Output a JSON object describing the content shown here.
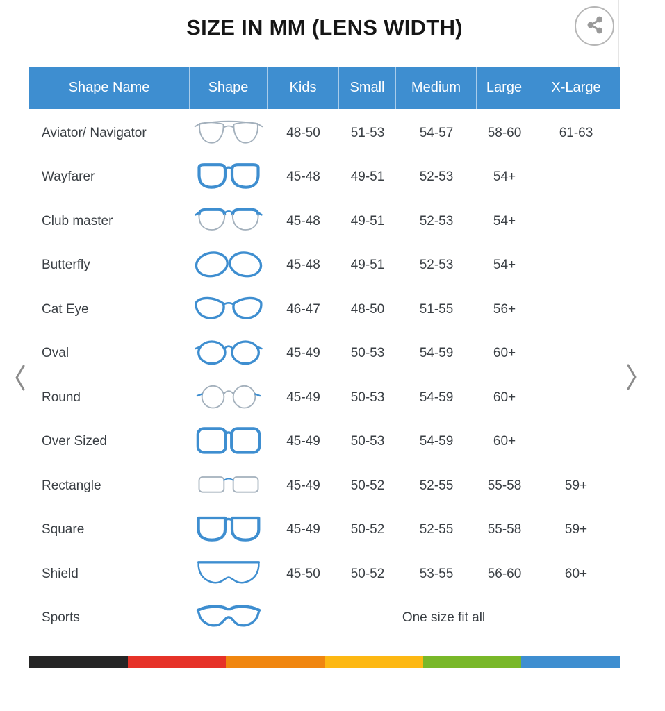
{
  "title": "SIZE IN MM (LENS WIDTH)",
  "share": {
    "icon": "share-icon"
  },
  "carousel": {
    "prev_icon": "chevron-left-icon",
    "next_icon": "chevron-right-icon"
  },
  "colors": {
    "header_bg": "#3e8ed0",
    "icon_blue": "#3e8ed0",
    "icon_gray": "#a3b0bc",
    "stripe": [
      "#262626",
      "#e63228",
      "#f0860f",
      "#fdb813",
      "#79b829",
      "#3e8ed0"
    ]
  },
  "table": {
    "columns": [
      "Shape Name",
      "Shape",
      "Kids",
      "Small",
      "Medium",
      "Large",
      "X-Large"
    ],
    "rows": [
      {
        "name": "Aviator/ Navigator",
        "icon": "aviator-glasses-icon",
        "kids": "48-50",
        "small": "51-53",
        "medium": "54-57",
        "large": "58-60",
        "xlarge": "61-63"
      },
      {
        "name": "Wayfarer",
        "icon": "wayfarer-glasses-icon",
        "kids": "45-48",
        "small": "49-51",
        "medium": "52-53",
        "large": "54+",
        "xlarge": ""
      },
      {
        "name": "Club master",
        "icon": "clubmaster-glasses-icon",
        "kids": "45-48",
        "small": "49-51",
        "medium": "52-53",
        "large": "54+",
        "xlarge": ""
      },
      {
        "name": "Butterfly",
        "icon": "butterfly-glasses-icon",
        "kids": "45-48",
        "small": "49-51",
        "medium": "52-53",
        "large": "54+",
        "xlarge": ""
      },
      {
        "name": "Cat Eye",
        "icon": "cateye-glasses-icon",
        "kids": "46-47",
        "small": "48-50",
        "medium": "51-55",
        "large": "56+",
        "xlarge": ""
      },
      {
        "name": "Oval",
        "icon": "oval-glasses-icon",
        "kids": "45-49",
        "small": "50-53",
        "medium": "54-59",
        "large": "60+",
        "xlarge": ""
      },
      {
        "name": "Round",
        "icon": "round-glasses-icon",
        "kids": "45-49",
        "small": "50-53",
        "medium": "54-59",
        "large": "60+",
        "xlarge": ""
      },
      {
        "name": "Over Sized",
        "icon": "oversized-glasses-icon",
        "kids": "45-49",
        "small": "50-53",
        "medium": "54-59",
        "large": "60+",
        "xlarge": ""
      },
      {
        "name": "Rectangle",
        "icon": "rectangle-glasses-icon",
        "kids": "45-49",
        "small": "50-52",
        "medium": "52-55",
        "large": "55-58",
        "xlarge": "59+"
      },
      {
        "name": "Square",
        "icon": "square-glasses-icon",
        "kids": "45-49",
        "small": "50-52",
        "medium": "52-55",
        "large": "55-58",
        "xlarge": "59+"
      },
      {
        "name": "Shield",
        "icon": "shield-glasses-icon",
        "kids": "45-50",
        "small": "50-52",
        "medium": "53-55",
        "large": "56-60",
        "xlarge": "60+"
      },
      {
        "name": "Sports",
        "icon": "sports-glasses-icon",
        "span_text": "One size fit all"
      }
    ]
  }
}
